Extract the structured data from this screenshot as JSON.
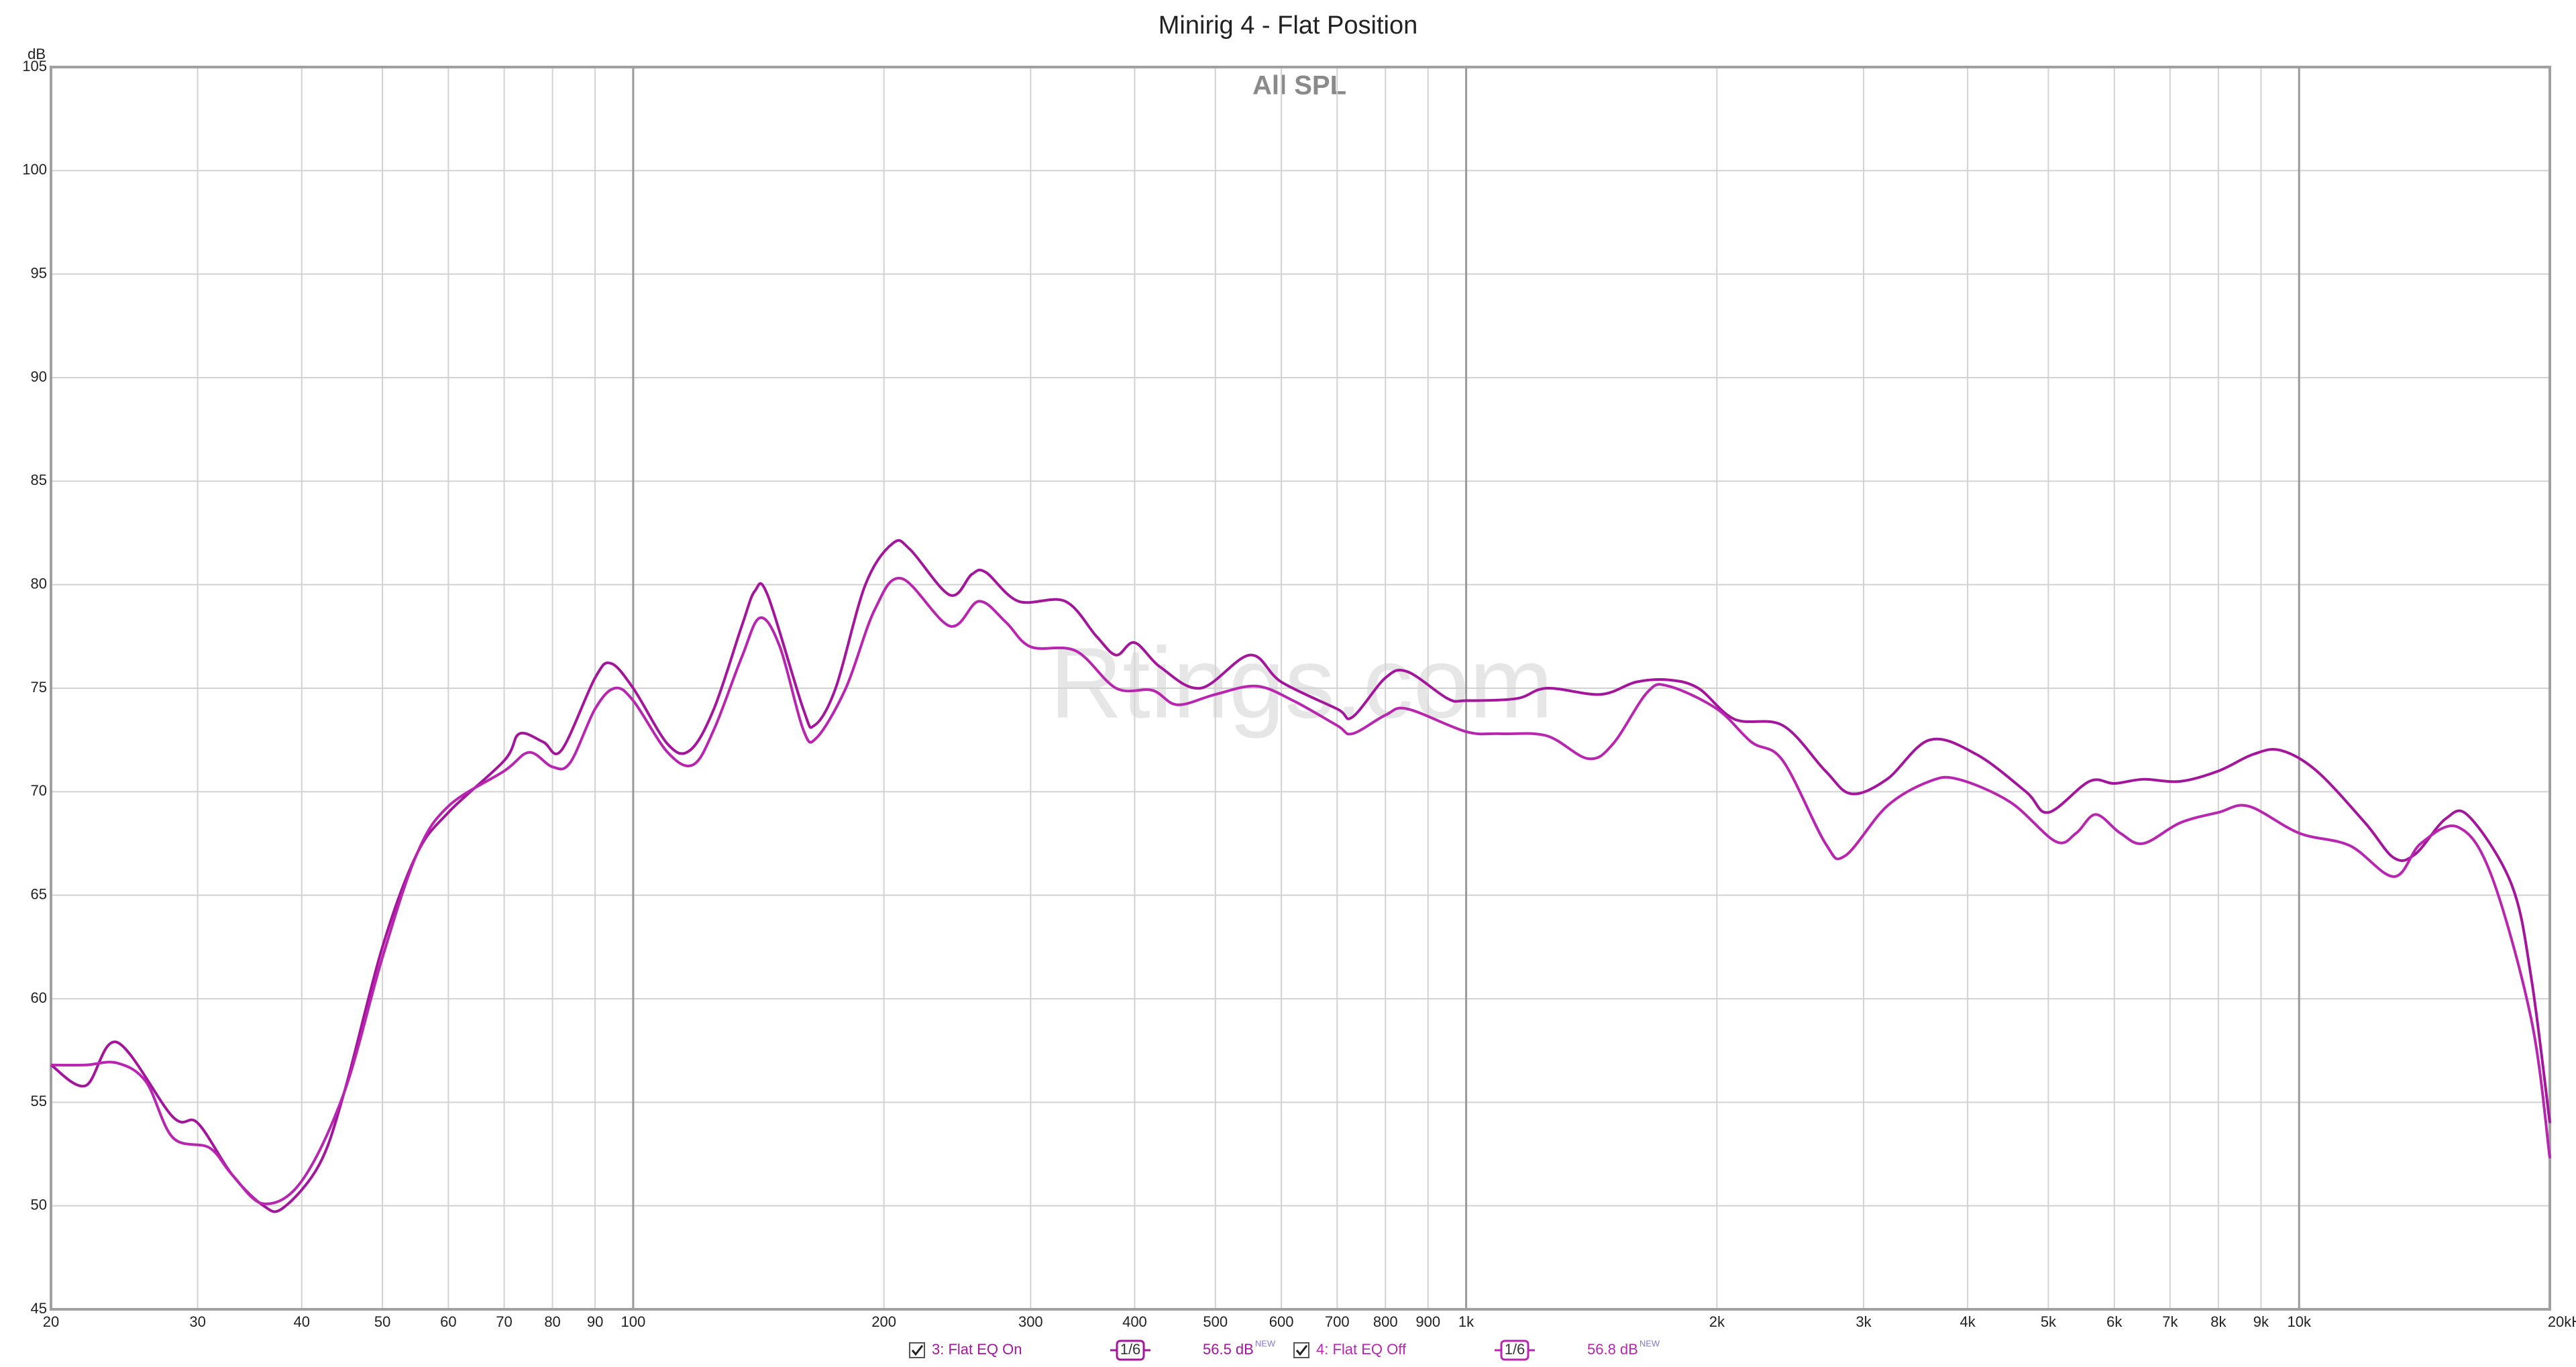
{
  "chart_data": {
    "type": "line",
    "title": "Minirig 4 - Flat Position",
    "subtitle": "All SPL",
    "watermark": "Rtings.com",
    "y_label": "dB",
    "xscale": "log",
    "grid": true,
    "xlim": [
      20,
      20000
    ],
    "ylim": [
      45,
      105
    ],
    "yticks": [
      45,
      50,
      55,
      60,
      65,
      70,
      75,
      80,
      85,
      90,
      95,
      100,
      105
    ],
    "xticks": [
      20,
      30,
      40,
      50,
      60,
      70,
      80,
      90,
      100,
      200,
      300,
      400,
      500,
      600,
      700,
      800,
      900,
      {
        "value": 1000,
        "label": "1k"
      },
      {
        "value": 2000,
        "label": "2k"
      },
      {
        "value": 3000,
        "label": "3k"
      },
      {
        "value": 4000,
        "label": "4k"
      },
      {
        "value": 5000,
        "label": "5k"
      },
      {
        "value": 6000,
        "label": "6k"
      },
      {
        "value": 7000,
        "label": "7k"
      },
      {
        "value": 8000,
        "label": "8k"
      },
      {
        "value": 9000,
        "label": "9k"
      },
      {
        "value": 10000,
        "label": "10k"
      },
      {
        "value": 20000,
        "label": "20kHz"
      }
    ],
    "series": [
      {
        "name": "3: Flat EQ On",
        "color": "#a3169c",
        "smoothing": "1/6",
        "level": "56.5 dB",
        "level_note": "NEW",
        "x": [
          20,
          22,
          24,
          28,
          30,
          33,
          36,
          38,
          42,
          45,
          50,
          55,
          60,
          70,
          73,
          78,
          82,
          90,
          94,
          100,
          110,
          117,
          125,
          135,
          140,
          145,
          160,
          165,
          175,
          190,
          205,
          215,
          240,
          255,
          265,
          290,
          330,
          360,
          380,
          400,
          430,
          480,
          550,
          600,
          700,
          730,
          800,
          850,
          950,
          1000,
          1150,
          1250,
          1450,
          1600,
          1750,
          1900,
          2100,
          2400,
          2700,
          2900,
          3200,
          3600,
          4100,
          4700,
          5000,
          5600,
          6000,
          6500,
          7200,
          8000,
          8800,
          9500,
          10500,
          12000,
          13000,
          13800,
          15000,
          16000,
          18000,
          19000,
          20000
        ],
        "values": [
          56.8,
          55.8,
          57.9,
          54.3,
          54,
          51.5,
          50,
          49.9,
          52,
          55.5,
          62.5,
          67,
          69,
          71.5,
          72.8,
          72.4,
          72,
          75.5,
          76.2,
          75,
          72.3,
          72,
          74,
          78,
          79.7,
          79.5,
          74,
          73.2,
          75,
          80,
          82,
          81.7,
          79.5,
          80.5,
          80.6,
          79.2,
          79.2,
          77.5,
          76.6,
          77.2,
          76,
          75,
          76.6,
          75.3,
          74,
          73.6,
          75.5,
          75.8,
          74.5,
          74.4,
          74.5,
          75,
          74.7,
          75.3,
          75.4,
          75,
          73.5,
          73.2,
          71,
          69.9,
          70.6,
          72.5,
          71.8,
          70,
          69,
          70.5,
          70.4,
          70.6,
          70.5,
          71,
          71.8,
          72,
          71,
          68.5,
          66.8,
          67,
          68.7,
          68.8,
          65.5,
          61,
          54
        ]
      },
      {
        "name": "4: Flat EQ Off",
        "color": "#b826b0",
        "smoothing": "1/6",
        "level": "56.8 dB",
        "level_note": "NEW",
        "x": [
          20,
          22,
          24,
          26,
          28,
          31,
          33,
          36,
          40,
          45,
          50,
          55,
          60,
          70,
          75,
          80,
          84,
          90,
          95,
          100,
          110,
          118,
          125,
          135,
          142,
          150,
          160,
          166,
          180,
          195,
          210,
          240,
          260,
          280,
          300,
          340,
          380,
          420,
          450,
          500,
          560,
          620,
          700,
          730,
          800,
          850,
          1000,
          1100,
          1250,
          1400,
          1500,
          1650,
          1750,
          2000,
          2200,
          2400,
          2700,
          2850,
          3200,
          3600,
          3900,
          4500,
          5100,
          5400,
          5700,
          6100,
          6500,
          7200,
          8000,
          8700,
          10000,
          11500,
          13000,
          14000,
          15500,
          17000,
          19000,
          20000
        ],
        "values": [
          56.8,
          56.8,
          56.9,
          56,
          53.3,
          52.8,
          51.5,
          50.1,
          51.2,
          55.5,
          62,
          67,
          69.3,
          71,
          71.9,
          71.2,
          71.4,
          74,
          75,
          74.4,
          71.9,
          71.3,
          73,
          76.5,
          78.4,
          77,
          73,
          72.6,
          75,
          78.8,
          80.3,
          78,
          79.2,
          78.2,
          77,
          76.8,
          75,
          74.9,
          74.2,
          74.7,
          75.1,
          74.4,
          73.2,
          72.8,
          73.7,
          74,
          72.9,
          72.8,
          72.7,
          71.6,
          72.3,
          74.8,
          75.1,
          74,
          72.4,
          71.5,
          67.5,
          66.9,
          69.3,
          70.5,
          70.6,
          69.5,
          67.6,
          68,
          68.9,
          68,
          67.5,
          68.5,
          69,
          69.3,
          68,
          67.4,
          65.9,
          67.5,
          68.3,
          66,
          59,
          52.3
        ]
      }
    ]
  }
}
